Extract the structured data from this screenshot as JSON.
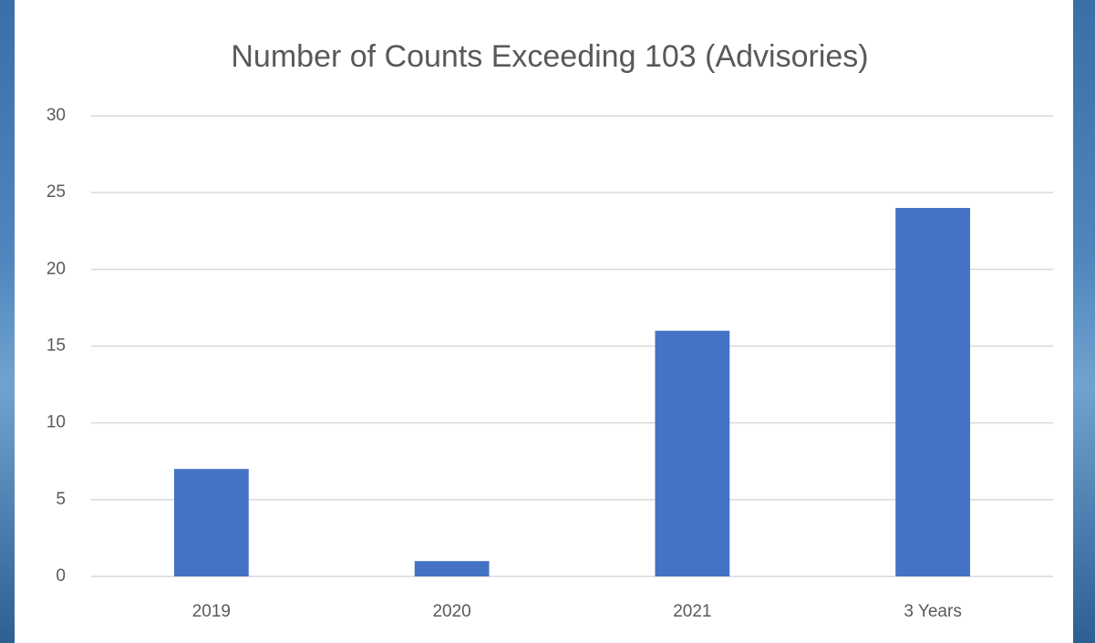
{
  "chart_data": {
    "type": "bar",
    "title": "Number of Counts Exceeding 103 (Advisories)",
    "categories": [
      "2019",
      "2020",
      "2021",
      "3 Years"
    ],
    "values": [
      7,
      1,
      16,
      24
    ],
    "color": "#4472c4",
    "ylim": [
      0,
      30
    ],
    "yticks": [
      0,
      5,
      10,
      15,
      20,
      25,
      30
    ],
    "grid": true
  }
}
